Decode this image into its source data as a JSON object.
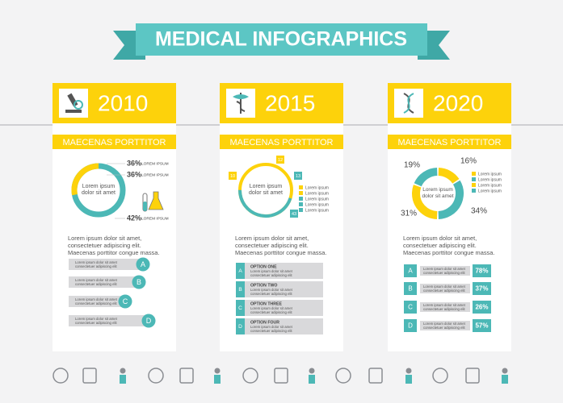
{
  "title": "MEDICAL INFOGRAPHICS",
  "panels": [
    {
      "year": "2010",
      "heading": "MAECENAS PORTTITOR",
      "donut_text": "Lorem ipsum dolor sit amet",
      "callouts": [
        {
          "value": "36%",
          "label": "LOREM IPSUM"
        },
        {
          "value": "36%",
          "label": "LOREM IPSUM"
        },
        {
          "value": "42%",
          "label": "LOREM IPSUM"
        }
      ],
      "body": "Lorem ipsum dolor sit amet, consectetuer adipiscing elit. Maecenas porttitor congue massa.",
      "items": [
        {
          "letter": "A",
          "text": "Lorem ipsum dolor sit amet consectetuer adipiscing elit"
        },
        {
          "letter": "B",
          "text": "Lorem ipsum dolor sit amet consectetuer adipiscing elit"
        },
        {
          "letter": "C",
          "text": "Lorem ipsum dolor sit amet consectetuer adipiscing elit"
        },
        {
          "letter": "D",
          "text": "Lorem ipsum dolor sit amet consectetuer adipiscing elit"
        }
      ]
    },
    {
      "year": "2015",
      "heading": "MAECENAS PORTTITOR",
      "donut_text": "Lorem ipsum dolor sit amet",
      "badges": [
        "12",
        "13",
        "43",
        "10"
      ],
      "legend": [
        "Lorem ipsum",
        "Lorem ipsum",
        "Lorem ipsum",
        "Lorem ipsum",
        "Lorem ipsum"
      ],
      "body": "Lorem ipsum dolor sit amet, consectetuer adipiscing elit. Maecenas porttitor congue massa.",
      "items": [
        {
          "letter": "A",
          "title": "OPTION ONE",
          "text": "Lorem ipsum dolor sit amet consectetuer adipiscing elit"
        },
        {
          "letter": "B",
          "title": "OPTION TWO",
          "text": "Lorem ipsum dolor sit amet consectetuer adipiscing elit"
        },
        {
          "letter": "C",
          "title": "OPTION THREE",
          "text": "Lorem ipsum dolor sit amet consectetuer adipiscing elit"
        },
        {
          "letter": "D",
          "title": "OPTION FOUR",
          "text": "Lorem ipsum dolor sit amet consectetuer adipiscing elit"
        }
      ]
    },
    {
      "year": "2020",
      "heading": "MAECENAS PORTTITOR",
      "donut_text": "Lorem ipsum dolor sit amet",
      "percents": [
        "19%",
        "16%",
        "31%",
        "34%"
      ],
      "legend": [
        "Lorem ipsum",
        "Lorem ipsum",
        "Lorem ipsum",
        "Lorem ipsum"
      ],
      "body": "Lorem ipsum dolor sit amet, consectetuer adipiscing elit. Maecenas porttitor congue massa.",
      "items": [
        {
          "letter": "A",
          "text": "Lorem ipsum dolor sit amet consectetuer adipiscing elit",
          "value": "78%"
        },
        {
          "letter": "B",
          "text": "Lorem ipsum dolor sit amet consectetuer adipiscing elit",
          "value": "37%"
        },
        {
          "letter": "C",
          "text": "Lorem ipsum dolor sit amet consectetuer adipiscing elit",
          "value": "26%"
        },
        {
          "letter": "D",
          "text": "Lorem ipsum dolor sit amet consectetuer adipiscing elit",
          "value": "57%"
        }
      ]
    }
  ]
}
